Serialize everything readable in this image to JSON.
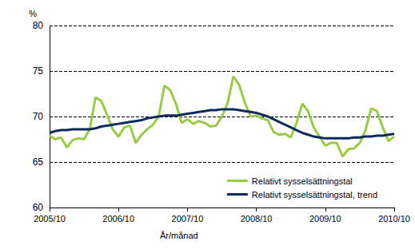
{
  "chart_data": {
    "type": "line",
    "y_label": "%",
    "x_label": "År/månad",
    "categories": [
      "2005/10",
      null,
      null,
      null,
      null,
      null,
      null,
      null,
      null,
      null,
      null,
      null,
      "2006/10",
      null,
      null,
      null,
      null,
      null,
      null,
      null,
      null,
      null,
      null,
      null,
      "2007/10",
      null,
      null,
      null,
      null,
      null,
      null,
      null,
      null,
      null,
      null,
      null,
      "2008/10",
      null,
      null,
      null,
      null,
      null,
      null,
      null,
      null,
      null,
      null,
      null,
      "2009/10",
      null,
      null,
      null,
      null,
      null,
      null,
      null,
      null,
      null,
      null,
      null,
      "2010/10"
    ],
    "series": [
      {
        "name": "Relativt sysselsättningstal",
        "color": "#99cc44",
        "values": [
          67.9,
          67.5,
          67.7,
          66.6,
          67.4,
          67.6,
          67.5,
          68.6,
          72.1,
          71.7,
          70.2,
          68.6,
          67.8,
          68.8,
          69.0,
          67.1,
          68.0,
          68.6,
          69.1,
          70.0,
          73.4,
          72.9,
          71.4,
          69.3,
          69.7,
          69.2,
          69.5,
          69.3,
          68.9,
          69.0,
          70.0,
          71.5,
          74.4,
          73.5,
          71.5,
          70.0,
          70.1,
          69.8,
          69.6,
          68.3,
          68.0,
          68.1,
          67.7,
          69.3,
          71.4,
          70.6,
          68.8,
          67.8,
          66.8,
          67.1,
          67.1,
          65.6,
          66.4,
          66.5,
          67.1,
          68.5,
          70.9,
          70.6,
          68.8,
          67.3,
          67.8
        ]
      },
      {
        "name": "Relativt sysselsättningstal, trend",
        "color": "#0d2a5c",
        "values": [
          68.2,
          68.4,
          68.5,
          68.5,
          68.6,
          68.6,
          68.6,
          68.6,
          68.7,
          68.9,
          69.0,
          69.1,
          69.2,
          69.3,
          69.4,
          69.5,
          69.6,
          69.8,
          69.9,
          70.0,
          70.1,
          70.1,
          70.1,
          70.2,
          70.3,
          70.4,
          70.5,
          70.6,
          70.7,
          70.7,
          70.8,
          70.8,
          70.8,
          70.7,
          70.6,
          70.5,
          70.4,
          70.2,
          70.0,
          69.7,
          69.4,
          69.1,
          68.8,
          68.5,
          68.2,
          68.0,
          67.8,
          67.7,
          67.6,
          67.6,
          67.6,
          67.6,
          67.6,
          67.7,
          67.7,
          67.8,
          67.8,
          67.9,
          67.9,
          68.0,
          68.1
        ]
      }
    ],
    "ylim": [
      60,
      80
    ],
    "yticks": [
      60,
      65,
      70,
      75,
      80
    ],
    "grid": true,
    "legend": "lower right"
  }
}
